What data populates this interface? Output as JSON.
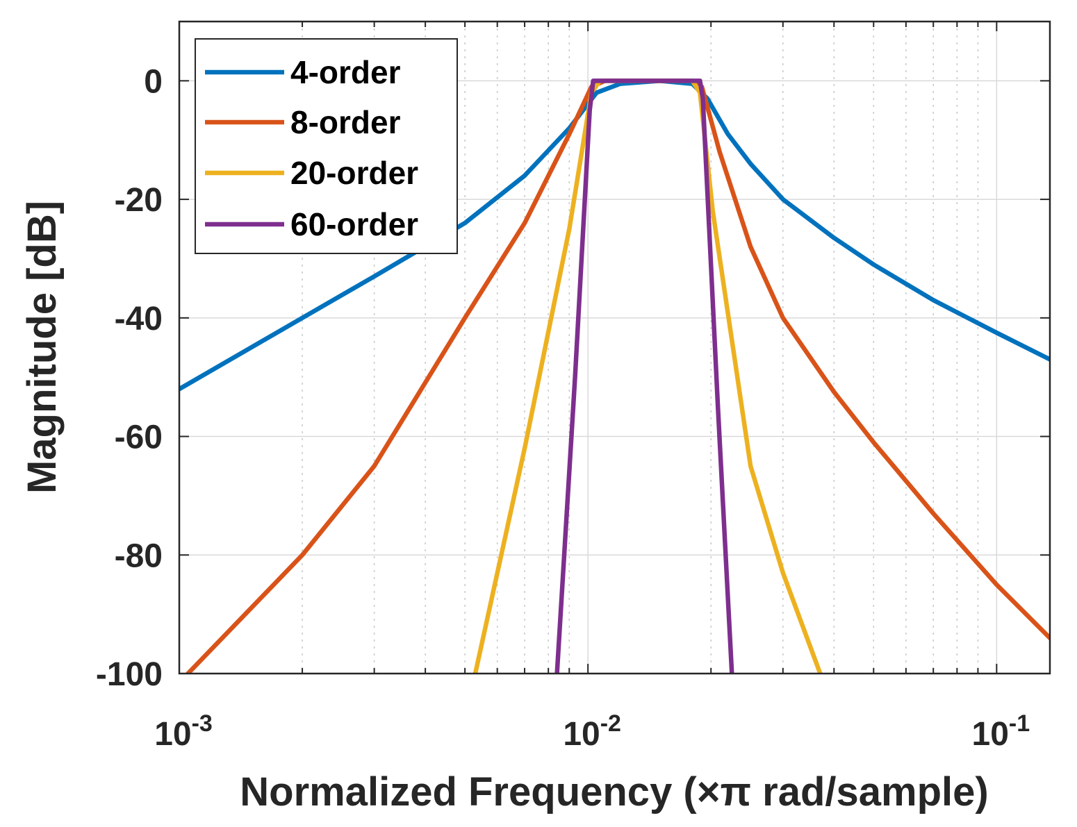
{
  "chart_data": {
    "type": "line",
    "xscale": "log",
    "xlim": [
      0.001,
      0.135
    ],
    "ylim": [
      -100,
      10
    ],
    "xlabel": "Normalized Frequency (×π rad/sample)",
    "ylabel": "Magnitude [dB]",
    "x_ticks": [
      {
        "value": 0.001,
        "base": "10",
        "exp": "-3"
      },
      {
        "value": 0.01,
        "base": "10",
        "exp": "-2"
      },
      {
        "value": 0.1,
        "base": "10",
        "exp": "-1"
      }
    ],
    "y_ticks": [
      {
        "value": 0,
        "label": "0"
      },
      {
        "value": -20,
        "label": "-20"
      },
      {
        "value": -40,
        "label": "-40"
      },
      {
        "value": -60,
        "label": "-60"
      },
      {
        "value": -80,
        "label": "-80"
      },
      {
        "value": -100,
        "label": "-100"
      }
    ],
    "grid": true,
    "legend_position": "top-left",
    "series": [
      {
        "name": "4-order",
        "color": "#0072BD",
        "x": [
          0.001,
          0.002,
          0.003,
          0.005,
          0.007,
          0.009,
          0.0105,
          0.012,
          0.015,
          0.018,
          0.0196,
          0.022,
          0.025,
          0.03,
          0.04,
          0.05,
          0.07,
          0.1,
          0.135
        ],
        "y": [
          -52,
          -40,
          -33,
          -24,
          -16,
          -8,
          -2,
          -0.5,
          0,
          -0.5,
          -3,
          -9,
          -14,
          -20,
          -26.5,
          -31,
          -37,
          -42.5,
          -47
        ]
      },
      {
        "name": "8-order",
        "color": "#D95319",
        "x": [
          0.00105,
          0.002,
          0.003,
          0.005,
          0.007,
          0.009,
          0.0102,
          0.011,
          0.018,
          0.019,
          0.021,
          0.025,
          0.03,
          0.04,
          0.05,
          0.07,
          0.1,
          0.135
        ],
        "y": [
          -100,
          -80,
          -65,
          -40,
          -24,
          -9,
          -1,
          0,
          0,
          -1,
          -12,
          -28,
          -40,
          -52.5,
          -61,
          -73,
          -85,
          -94
        ]
      },
      {
        "name": "20-order",
        "color": "#EDB120",
        "x": [
          0.0053,
          0.007,
          0.009,
          0.0102,
          0.0107,
          0.018,
          0.0188,
          0.0202,
          0.025,
          0.03,
          0.037
        ],
        "y": [
          -100,
          -62,
          -25,
          -2,
          0,
          0,
          -2,
          -22,
          -65,
          -83,
          -100
        ]
      },
      {
        "name": "60-order",
        "color": "#7E2F8E",
        "x": [
          0.0084,
          0.0093,
          0.0101,
          0.0103,
          0.0188,
          0.0191,
          0.0208,
          0.0225
        ],
        "y": [
          -100,
          -50,
          -5,
          0,
          0,
          -3,
          -55,
          -100
        ]
      }
    ]
  }
}
